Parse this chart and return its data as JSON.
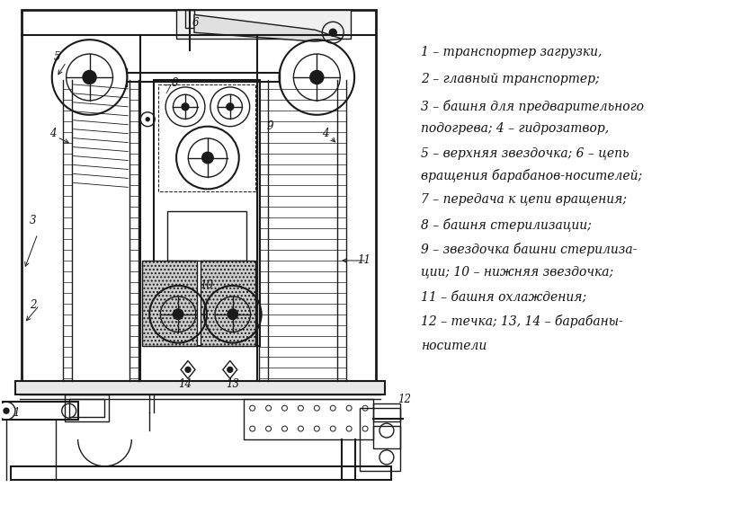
{
  "bg_color": "#ffffff",
  "line_color": "#1a1a1a",
  "figsize": [
    8.34,
    5.72
  ],
  "dpi": 100,
  "legend_lines": [
    [
      "1 – транспортер загрузки,",
      50
    ],
    [
      "2 – главный транспортер;",
      80
    ],
    [
      "3 – башня для предварительного",
      110
    ],
    [
      "подогрева; 4 – гидрозатвор,",
      135
    ],
    [
      "5 – верхняя звездочка; 6 – цепь",
      163
    ],
    [
      "вращения барабанов-носителей;",
      188
    ],
    [
      "7 – передача к цепи вращения;",
      215
    ],
    [
      "8 – башня стерилизации;",
      243
    ],
    [
      "9 – звездочка башни стерилиза-",
      270
    ],
    [
      "ции; 10 – нижняя звездочка;",
      295
    ],
    [
      "11 – башня охлаждения;",
      323
    ],
    [
      "12 – течка; 13, 14 – барабаны-",
      350
    ],
    [
      "носители",
      378
    ]
  ]
}
